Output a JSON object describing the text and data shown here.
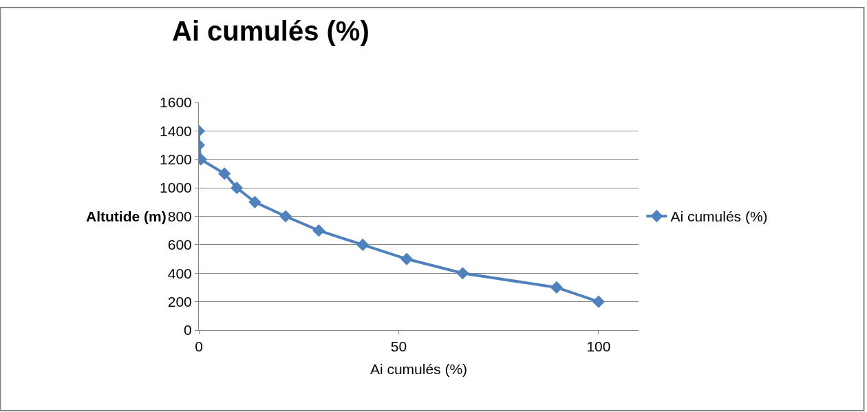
{
  "chart_data": {
    "type": "line",
    "title": "Ai cumulés (%)",
    "xlabel": "Ai cumulés (%)",
    "ylabel": "Altutide (m)",
    "x": [
      0,
      0,
      0.5,
      6.4,
      9.5,
      14,
      21.7,
      30,
      41,
      52,
      66,
      89.5,
      100
    ],
    "series": [
      {
        "name": "Ai cumulés (%)",
        "color": "#4f81bd",
        "values": [
          1400,
          1300,
          1200,
          1100,
          1000,
          900,
          800,
          700,
          600,
          500,
          400,
          300,
          200
        ]
      }
    ],
    "xlim": [
      0,
      110
    ],
    "xticks": [
      0,
      50,
      100
    ],
    "ylim": [
      0,
      1600
    ],
    "yticks": [
      0,
      200,
      400,
      600,
      800,
      1000,
      1200,
      1400,
      1600
    ],
    "grid": "y",
    "legend": "right",
    "marker": "diamond",
    "line_style": "solid"
  }
}
